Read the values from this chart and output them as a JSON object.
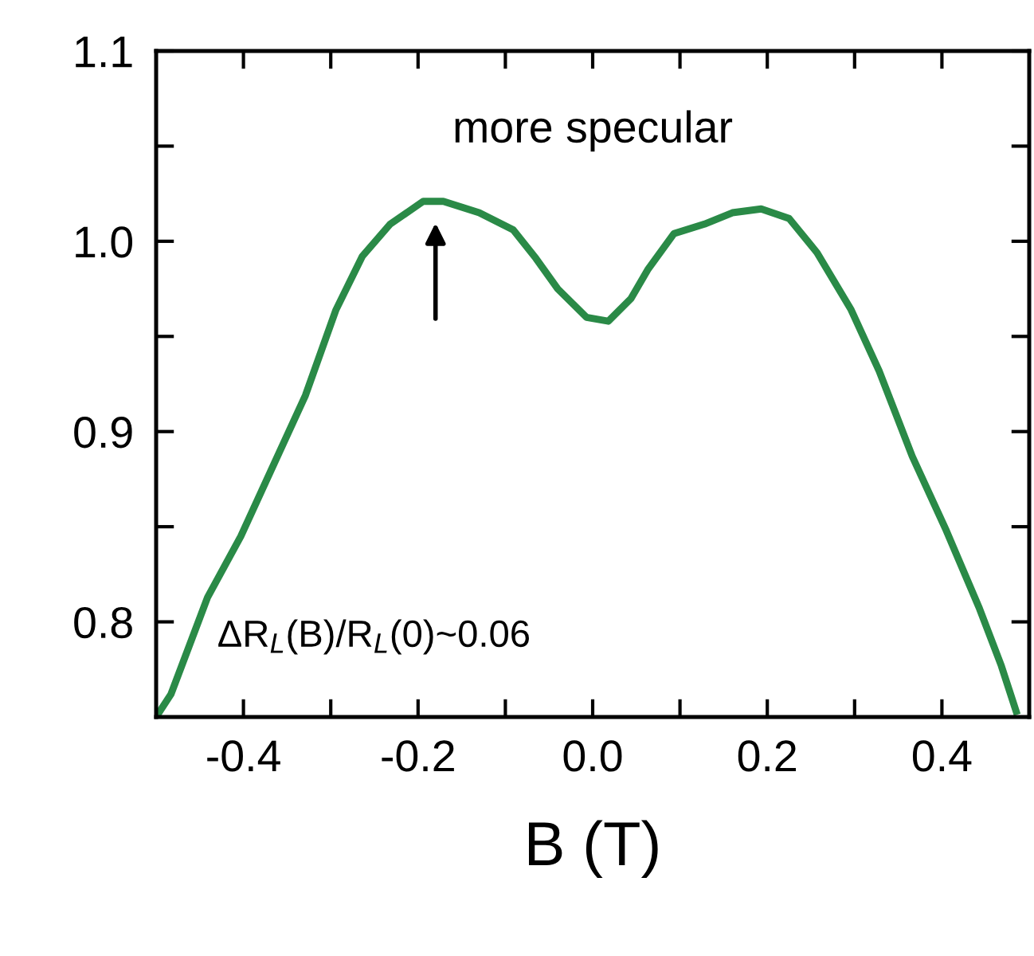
{
  "chart_data": {
    "type": "line",
    "xlabel": "B (T)",
    "xlim": [
      -0.5,
      0.5
    ],
    "xticks": [
      -0.4,
      {
        "value": -0.3,
        "label": null
      },
      -0.2,
      {
        "value": -0.1,
        "label": null
      },
      {
        "value": 0,
        "label": "0.0"
      },
      {
        "value": 0.1,
        "label": null
      },
      0.2,
      {
        "value": 0.3,
        "label": null
      },
      0.4
    ],
    "ylim": [
      0.75,
      1.1
    ],
    "yticks": [
      0.8,
      {
        "value": 0.85,
        "label": null
      },
      0.9,
      {
        "value": 0.95,
        "label": null
      },
      {
        "value": 1,
        "label": "1.0"
      },
      {
        "value": 1.05,
        "label": null
      },
      1.1
    ],
    "grid": false,
    "legend": false,
    "marker": "none",
    "line_style": "solid",
    "annotations": [
      {
        "text": "more specular",
        "x": -0.18,
        "y": 1.017
      },
      "ΔR$_{L}$(B)/R$_{L}$(0)~0.06"
    ],
    "series": [
      {
        "color": "#2a8a47",
        "x": [
          -0.5,
          -0.483,
          -0.441,
          -0.403,
          -0.364,
          -0.329,
          -0.294,
          -0.264,
          -0.232,
          -0.194,
          -0.171,
          -0.13,
          -0.091,
          -0.065,
          -0.04,
          -0.007,
          0.018,
          0.044,
          0.063,
          0.093,
          0.128,
          0.16,
          0.193,
          0.225,
          0.257,
          0.296,
          0.328,
          0.366,
          0.405,
          0.443,
          0.468,
          0.485
        ],
        "values": [
          0.75,
          0.762,
          0.813,
          0.845,
          0.884,
          0.919,
          0.964,
          0.992,
          1.009,
          1.021,
          1.021,
          1.015,
          1.006,
          0.991,
          0.975,
          0.96,
          0.958,
          0.97,
          0.985,
          1.004,
          1.009,
          1.015,
          1.017,
          1.012,
          0.994,
          0.964,
          0.932,
          0.887,
          0.848,
          0.807,
          0.777,
          0.753
        ]
      }
    ]
  }
}
